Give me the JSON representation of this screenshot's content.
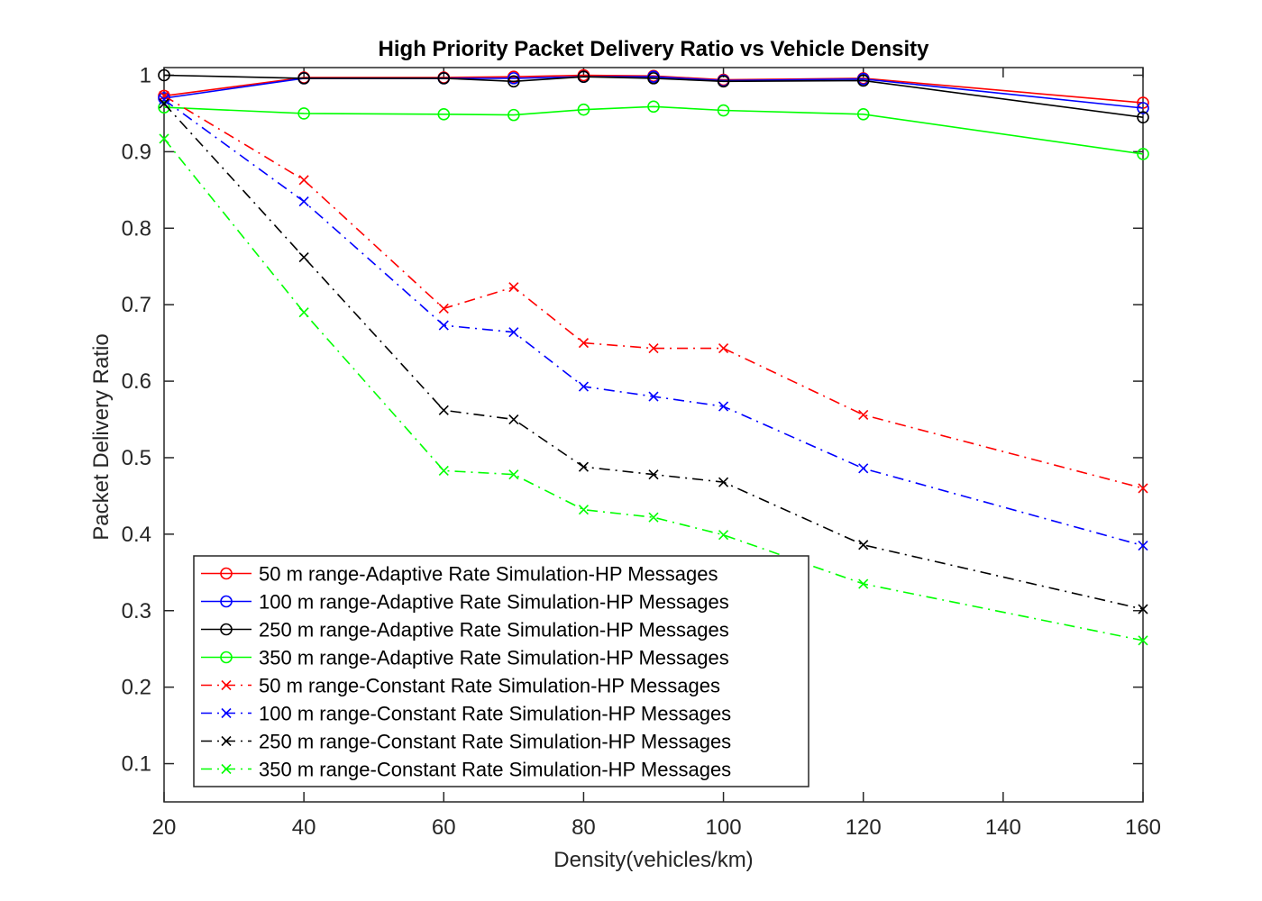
{
  "chart_data": {
    "type": "line",
    "title": "High Priority Packet Delivery Ratio vs Vehicle Density",
    "xlabel": "Density(vehicles/km)",
    "ylabel": "Packet Delivery Ratio",
    "xlim": [
      20,
      160
    ],
    "ylim": [
      0.05,
      1.01
    ],
    "xticks": [
      20,
      40,
      60,
      80,
      100,
      120,
      140,
      160
    ],
    "yticks": [
      0.1,
      0.2,
      0.3,
      0.4,
      0.5,
      0.6,
      0.7,
      0.8,
      0.9,
      1
    ],
    "ytick_labels": [
      "0.1",
      "0.2",
      "0.3",
      "0.4",
      "0.5",
      "0.6",
      "0.7",
      "0.8",
      "0.9",
      "1"
    ],
    "x": [
      20,
      40,
      60,
      70,
      80,
      90,
      100,
      120,
      160
    ],
    "grid": false,
    "legend_position": "bottom-left",
    "series": [
      {
        "name": "50 m range-Adaptive Rate Simulation-HP Messages",
        "color": "#ff0000",
        "marker": "circle",
        "dash": "solid",
        "values": [
          0.973,
          0.997,
          0.997,
          0.998,
          1.0,
          0.999,
          0.994,
          0.996,
          0.964
        ]
      },
      {
        "name": "100 m range-Adaptive Rate Simulation-HP Messages",
        "color": "#0000ff",
        "marker": "circle",
        "dash": "solid",
        "values": [
          0.97,
          0.996,
          0.996,
          0.996,
          0.998,
          0.998,
          0.993,
          0.995,
          0.957
        ]
      },
      {
        "name": "250 m range-Adaptive Rate Simulation-HP Messages",
        "color": "#000000",
        "marker": "circle",
        "dash": "solid",
        "values": [
          1.0,
          0.996,
          0.996,
          0.992,
          0.998,
          0.996,
          0.992,
          0.993,
          0.945
        ]
      },
      {
        "name": "350 m range-Adaptive Rate Simulation-HP Messages",
        "color": "#00ff00",
        "marker": "circle",
        "dash": "solid",
        "values": [
          0.958,
          0.95,
          0.949,
          0.948,
          0.955,
          0.959,
          0.954,
          0.949,
          0.897
        ]
      },
      {
        "name": "50 m range-Constant Rate Simulation-HP Messages",
        "color": "#ff0000",
        "marker": "x",
        "dash": "dashdot",
        "values": [
          0.973,
          0.863,
          0.695,
          0.723,
          0.65,
          0.643,
          0.643,
          0.556,
          0.46
        ]
      },
      {
        "name": "100 m range-Constant Rate Simulation-HP Messages",
        "color": "#0000ff",
        "marker": "x",
        "dash": "dashdot",
        "values": [
          0.968,
          0.835,
          0.673,
          0.664,
          0.593,
          0.58,
          0.567,
          0.486,
          0.385
        ]
      },
      {
        "name": "250 m range-Constant Rate Simulation-HP Messages",
        "color": "#000000",
        "marker": "x",
        "dash": "dashdot",
        "values": [
          0.963,
          0.762,
          0.562,
          0.55,
          0.488,
          0.478,
          0.468,
          0.386,
          0.302
        ]
      },
      {
        "name": "350 m range-Constant Rate Simulation-HP Messages",
        "color": "#00ff00",
        "marker": "x",
        "dash": "dashdot",
        "values": [
          0.917,
          0.69,
          0.483,
          0.478,
          0.432,
          0.422,
          0.399,
          0.335,
          0.261
        ]
      }
    ]
  }
}
